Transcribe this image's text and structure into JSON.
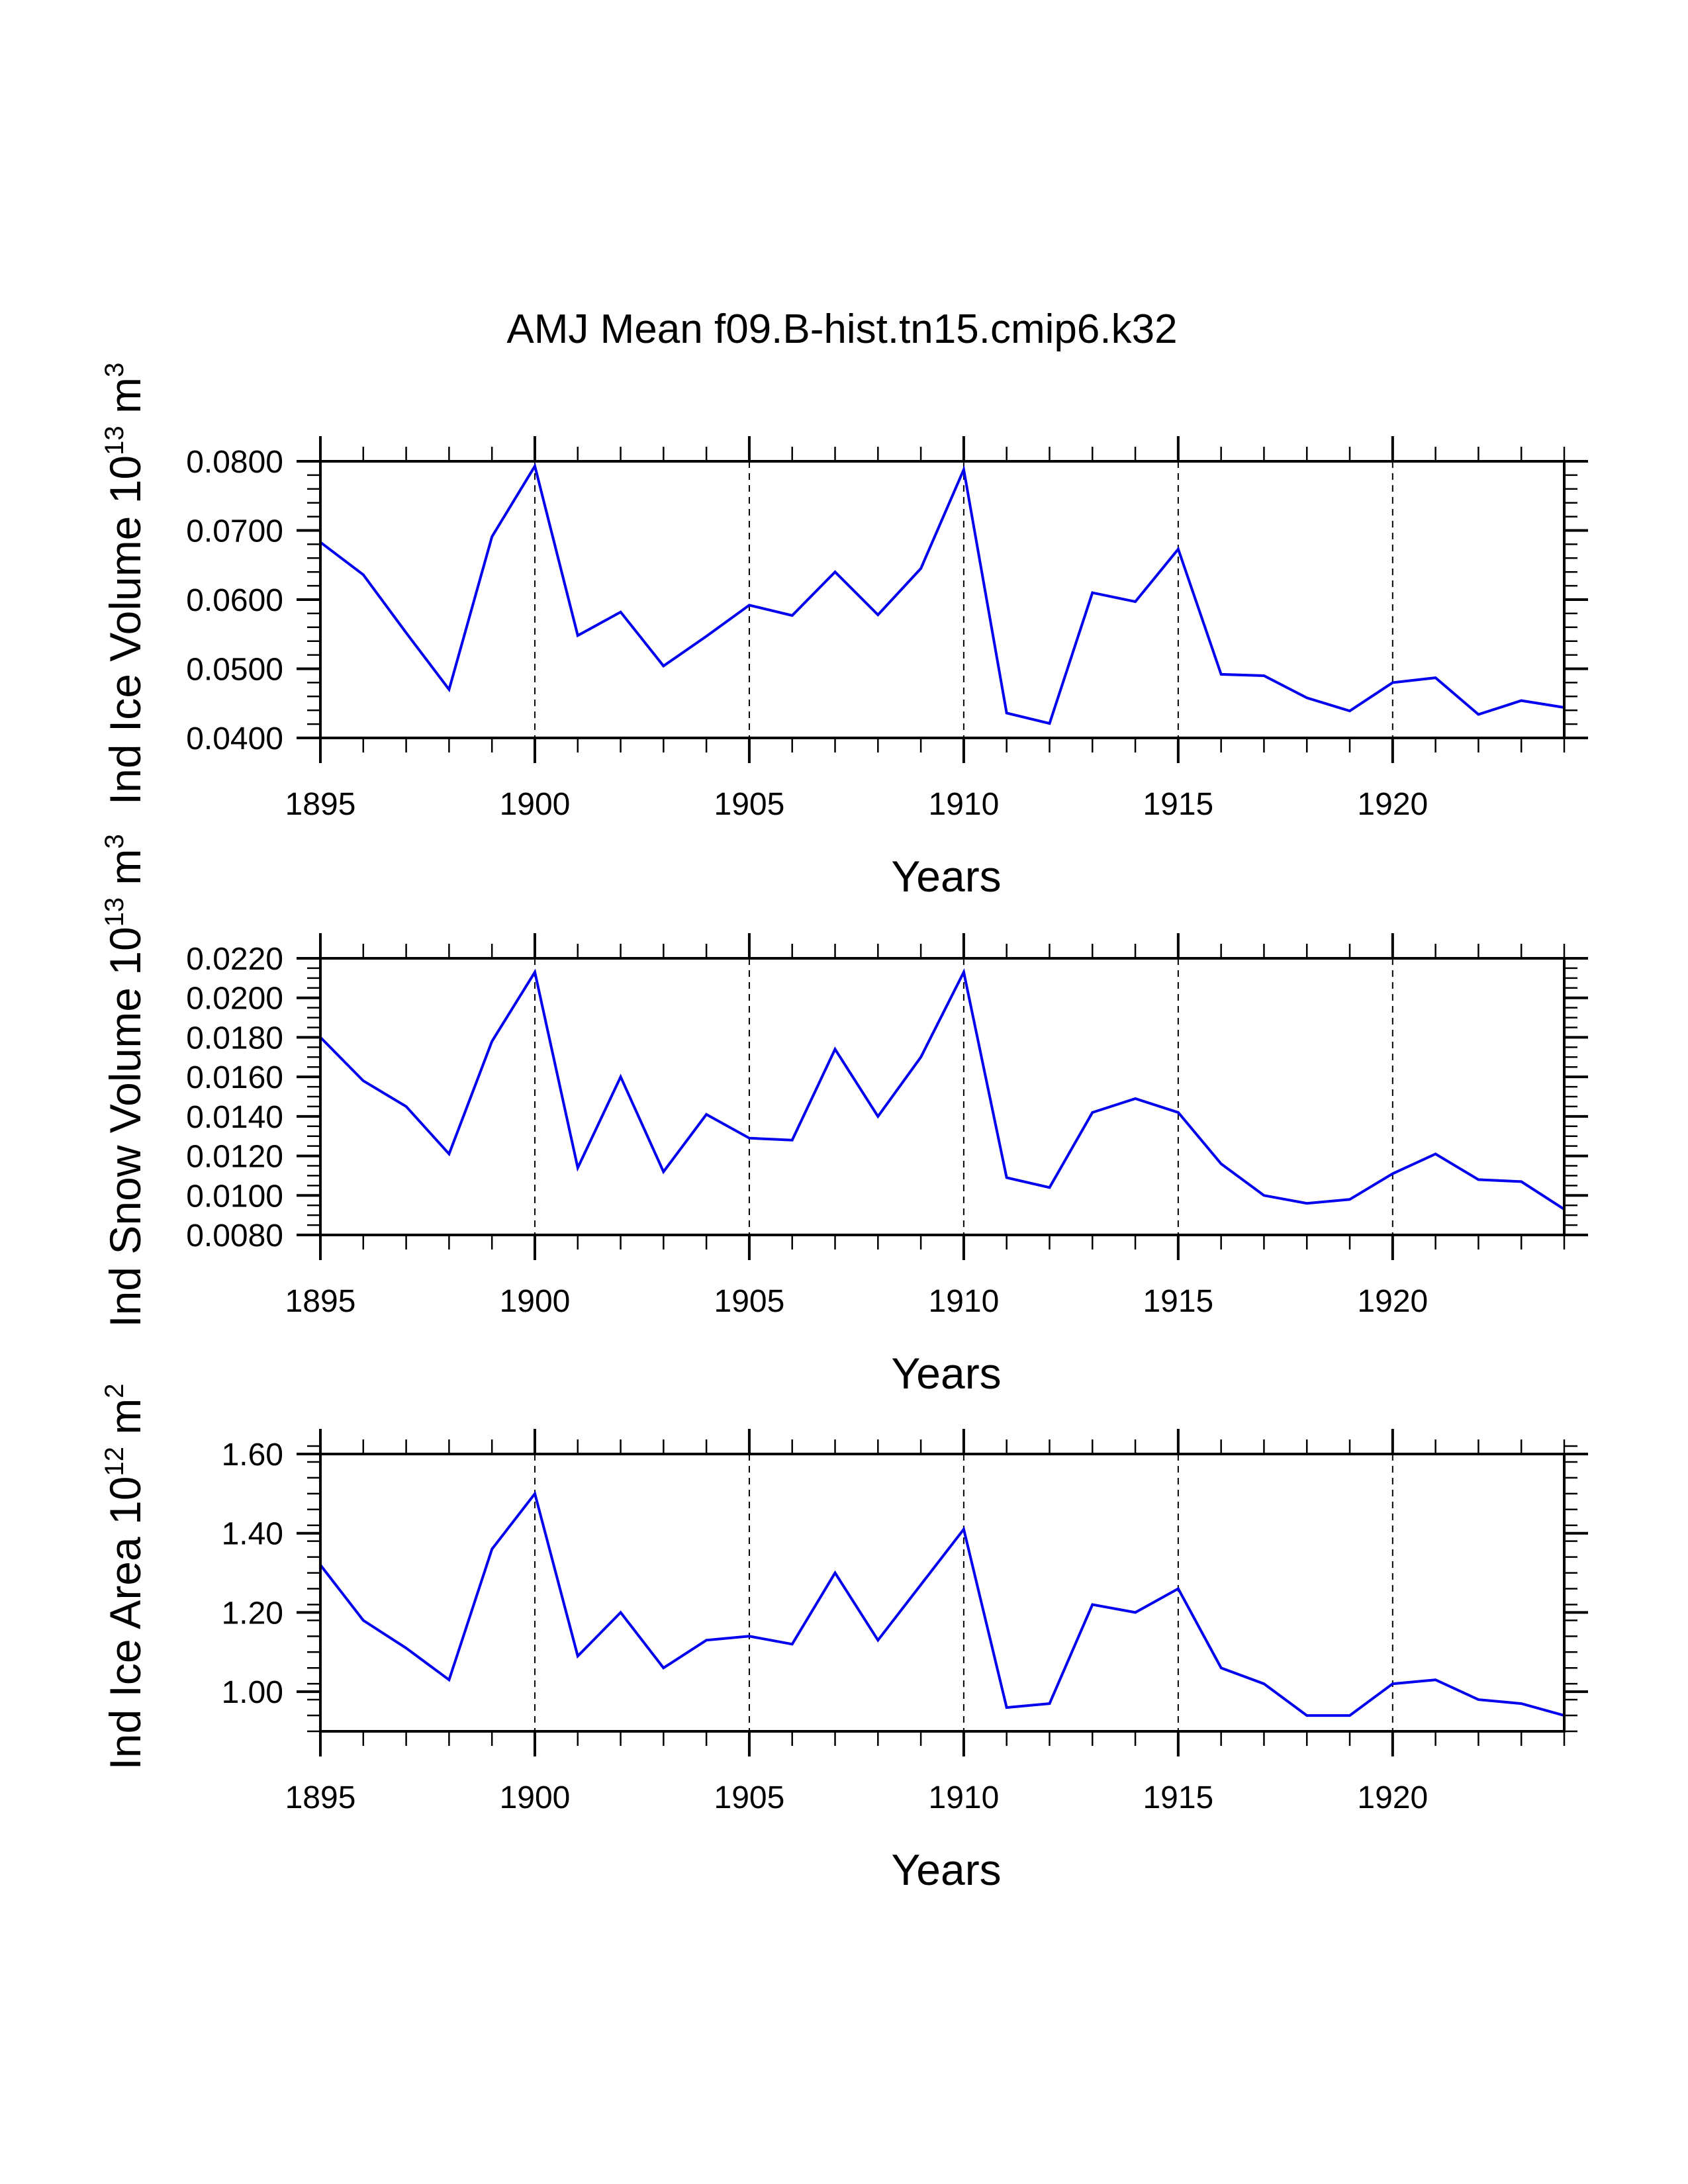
{
  "title": "AMJ Mean f09.B-hist.tn15.cmip6.k32",
  "colors": {
    "line": "#0000ee",
    "axes": "#000000",
    "grid": "#000000",
    "background": "#ffffff"
  },
  "chart_data": [
    {
      "type": "line",
      "title": "AMJ Mean f09.B-hist.tn15.cmip6.k32",
      "xlabel": "Years",
      "ylabel": {
        "prefix": "Ind Ice Volume 10",
        "exp": "13",
        "unit": " m",
        "unit_exp": "3"
      },
      "xlim": [
        1895,
        1924
      ],
      "ylim": [
        0.04,
        0.08
      ],
      "xticks": [
        "1895",
        "1900",
        "1905",
        "1910",
        "1915",
        "1920"
      ],
      "yticks": [
        "0.0400",
        "0.0500",
        "0.0600",
        "0.0700",
        "0.0800"
      ],
      "grid": "vertical dashed at major x ticks",
      "series": [
        {
          "name": "Ind Ice Volume",
          "x": [
            1895,
            1896,
            1897,
            1898,
            1899,
            1900,
            1901,
            1902,
            1903,
            1904,
            1905,
            1906,
            1907,
            1908,
            1909,
            1910,
            1911,
            1912,
            1913,
            1914,
            1915,
            1916,
            1917,
            1918,
            1919,
            1920,
            1921,
            1922,
            1923,
            1924
          ],
          "y": [
            0.0683,
            0.0636,
            0.0552,
            0.047,
            0.0691,
            0.0793,
            0.0548,
            0.0582,
            0.0504,
            0.0547,
            0.0592,
            0.0577,
            0.064,
            0.0578,
            0.0645,
            0.0788,
            0.0436,
            0.0421,
            0.061,
            0.0597,
            0.0673,
            0.0492,
            0.049,
            0.0458,
            0.0439,
            0.048,
            0.0487,
            0.0434,
            0.0454,
            0.0444
          ]
        }
      ]
    },
    {
      "type": "line",
      "xlabel": "Years",
      "ylabel": {
        "prefix": "Ind Snow Volume 10",
        "exp": "13",
        "unit": " m",
        "unit_exp": "3"
      },
      "xlim": [
        1895,
        1924
      ],
      "ylim": [
        0.008,
        0.022
      ],
      "xticks": [
        "1895",
        "1900",
        "1905",
        "1910",
        "1915",
        "1920"
      ],
      "yticks": [
        "0.0080",
        "0.0100",
        "0.0120",
        "0.0140",
        "0.0160",
        "0.0180",
        "0.0200",
        "0.0220"
      ],
      "grid": "vertical dashed at major x ticks",
      "series": [
        {
          "name": "Ind Snow Volume",
          "x": [
            1895,
            1896,
            1897,
            1898,
            1899,
            1900,
            1901,
            1902,
            1903,
            1904,
            1905,
            1906,
            1907,
            1908,
            1909,
            1910,
            1911,
            1912,
            1913,
            1914,
            1915,
            1916,
            1917,
            1918,
            1919,
            1920,
            1921,
            1922,
            1923,
            1924
          ],
          "y": [
            0.018,
            0.0158,
            0.0145,
            0.0121,
            0.0178,
            0.0213,
            0.0114,
            0.016,
            0.0112,
            0.0141,
            0.0129,
            0.0128,
            0.0174,
            0.014,
            0.017,
            0.0213,
            0.0109,
            0.0104,
            0.0142,
            0.0149,
            0.0142,
            0.0116,
            0.01,
            0.0096,
            0.0098,
            0.0111,
            0.0121,
            0.0108,
            0.0107,
            0.0093
          ]
        }
      ]
    },
    {
      "type": "line",
      "xlabel": "Years",
      "ylabel": {
        "prefix": "Ind Ice Area 10",
        "exp": "12",
        "unit": " m",
        "unit_exp": "2"
      },
      "xlim": [
        1895,
        1924
      ],
      "ylim": [
        0.9,
        1.6
      ],
      "xticks": [
        "1895",
        "1900",
        "1905",
        "1910",
        "1915",
        "1920"
      ],
      "yticks": [
        "1.00",
        "1.20",
        "1.40",
        "1.60"
      ],
      "grid": "vertical dashed at major x ticks",
      "series": [
        {
          "name": "Ind Ice Area",
          "x": [
            1895,
            1896,
            1897,
            1898,
            1899,
            1900,
            1901,
            1902,
            1903,
            1904,
            1905,
            1906,
            1907,
            1908,
            1909,
            1910,
            1911,
            1912,
            1913,
            1914,
            1915,
            1916,
            1917,
            1918,
            1919,
            1920,
            1921,
            1922,
            1923,
            1924
          ],
          "y": [
            1.32,
            1.18,
            1.11,
            1.03,
            1.36,
            1.5,
            1.09,
            1.2,
            1.06,
            1.13,
            1.14,
            1.12,
            1.3,
            1.13,
            1.27,
            1.41,
            0.96,
            0.97,
            1.22,
            1.2,
            1.26,
            1.06,
            1.02,
            0.94,
            0.94,
            1.02,
            1.03,
            0.98,
            0.97,
            0.94
          ]
        }
      ]
    }
  ]
}
